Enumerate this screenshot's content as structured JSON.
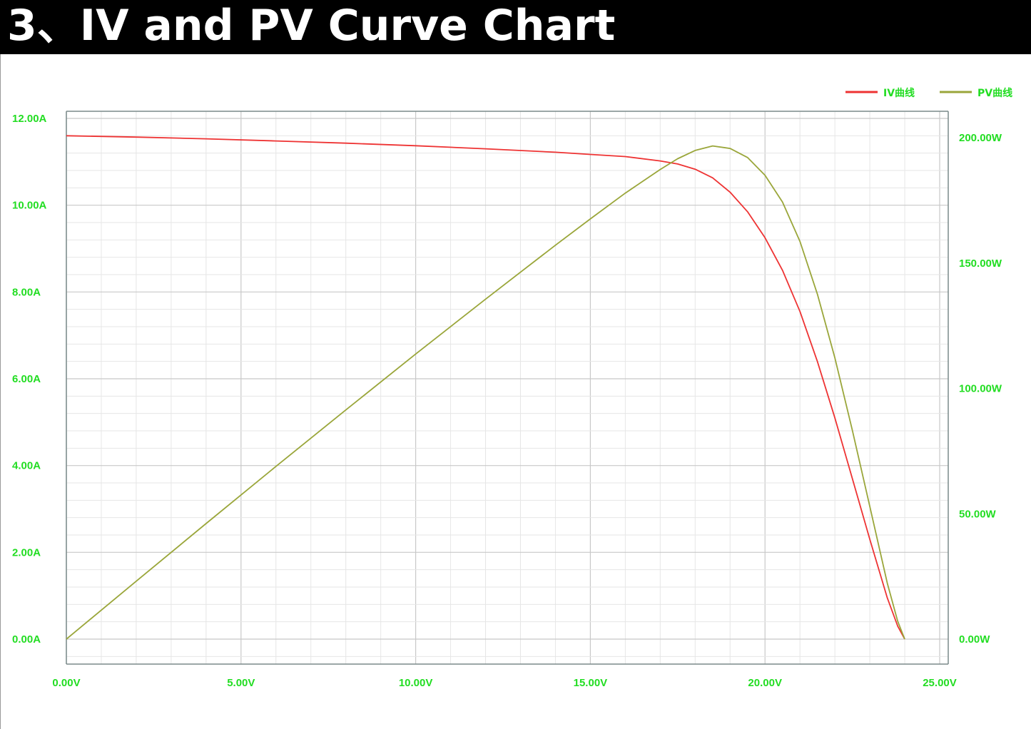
{
  "title": "3、IV and PV Curve Chart",
  "colors": {
    "background": "#ffffff",
    "title_bg": "#000000",
    "title_fg": "#ffffff",
    "tick_label": "#22dd22",
    "grid_major": "#c8c8c8",
    "grid_minor": "#e6e6e6",
    "axis": "#7a8a8a",
    "iv_curve": "#ee3333",
    "pv_curve": "#9aa63a"
  },
  "chart_data": {
    "type": "line",
    "legend_position": "top-right",
    "grid": true,
    "x_ticks": [
      "0.00V",
      "5.00V",
      "10.00V",
      "15.00V",
      "20.00V",
      "25.00V"
    ],
    "y_left_ticks": [
      "0.00A",
      "2.00A",
      "4.00A",
      "6.00A",
      "8.00A",
      "10.00A",
      "12.00A"
    ],
    "y_right_ticks": [
      "0.00W",
      "50.00W",
      "100.00W",
      "150.00W",
      "200.00W"
    ],
    "xlim": [
      0,
      25
    ],
    "ylim_left": [
      0,
      12
    ],
    "ylim_right": [
      0,
      200
    ],
    "series": [
      {
        "name": "IV曲线",
        "axis": "left",
        "color": "#ee3333",
        "x": [
          0,
          2,
          4,
          6,
          8,
          10,
          12,
          14,
          15,
          16,
          17,
          17.5,
          18,
          18.5,
          19,
          19.5,
          20,
          20.5,
          21,
          21.5,
          22,
          22.5,
          23,
          23.5,
          23.8,
          24.0
        ],
        "y": [
          11.6,
          11.57,
          11.53,
          11.48,
          11.43,
          11.37,
          11.3,
          11.22,
          11.17,
          11.12,
          11.02,
          10.95,
          10.83,
          10.63,
          10.3,
          9.85,
          9.25,
          8.5,
          7.55,
          6.4,
          5.1,
          3.7,
          2.3,
          0.95,
          0.3,
          0.0
        ]
      },
      {
        "name": "PV曲线",
        "axis": "right",
        "color": "#9aa63a",
        "x": [
          0,
          2,
          4,
          6,
          8,
          10,
          12,
          14,
          15,
          16,
          17,
          17.5,
          18,
          18.5,
          19,
          19.5,
          20,
          20.5,
          21,
          21.5,
          22,
          22.5,
          23,
          23.5,
          23.8,
          24.0
        ],
        "y": [
          0,
          23.1,
          46.1,
          68.9,
          91.4,
          113.7,
          135.6,
          157.1,
          167.6,
          177.9,
          187.3,
          191.6,
          194.9,
          196.7,
          195.7,
          192.1,
          185.0,
          174.3,
          158.6,
          137.6,
          112.2,
          83.3,
          52.9,
          22.3,
          7.1,
          0
        ]
      }
    ]
  }
}
